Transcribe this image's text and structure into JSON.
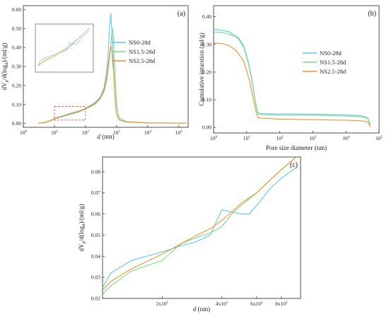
{
  "colors": {
    "ns0": "#5cc8e8",
    "ns15": "#7ed98a",
    "ns25": "#f0902e",
    "highlight": "#e8463a"
  },
  "chart_data": [
    {
      "panel": "(a)",
      "type": "line",
      "xlabel_var": "d",
      "xlabel_unit": " (nm)",
      "ylabel": "dVp/d(logd)/(ml/g)",
      "x_scale": "log",
      "xlim": [
        1,
        200000
      ],
      "ylim": [
        -0.02,
        0.62
      ],
      "x_ticks": [
        {
          "base": "10",
          "exp": "0",
          "v": 1
        },
        {
          "base": "10",
          "exp": "1",
          "v": 10
        },
        {
          "base": "10",
          "exp": "2",
          "v": 100
        },
        {
          "base": "10",
          "exp": "3",
          "v": 1000
        },
        {
          "base": "10",
          "exp": "4",
          "v": 10000
        },
        {
          "base": "10",
          "exp": "5",
          "v": 100000
        }
      ],
      "y_ticks": [
        "0.00",
        "0.10",
        "0.20",
        "0.30",
        "0.40",
        "0.50",
        "0.60"
      ],
      "y_tick_values": [
        0,
        0.1,
        0.2,
        0.3,
        0.4,
        0.5,
        0.6
      ],
      "legend_position": "top-right",
      "series": [
        {
          "name": "NS0-28d",
          "color_key": "ns0",
          "points": [
            [
              3,
              0.002
            ],
            [
              5,
              0.005
            ],
            [
              8,
              0.018
            ],
            [
              10,
              0.028
            ],
            [
              20,
              0.042
            ],
            [
              40,
              0.058
            ],
            [
              60,
              0.065
            ],
            [
              100,
              0.08
            ],
            [
              200,
              0.11
            ],
            [
              300,
              0.14
            ],
            [
              400,
              0.19
            ],
            [
              500,
              0.3
            ],
            [
              550,
              0.4
            ],
            [
              600,
              0.52
            ],
            [
              650,
              0.58
            ],
            [
              700,
              0.5
            ],
            [
              800,
              0.3
            ],
            [
              900,
              0.12
            ],
            [
              1000,
              0.05
            ],
            [
              1200,
              0.02
            ],
            [
              2000,
              0.008
            ],
            [
              10000,
              0.003
            ],
            [
              100000,
              0.002
            ],
            [
              180000,
              0.002
            ]
          ]
        },
        {
          "name": "NS1.5-28d",
          "color_key": "ns15",
          "points": [
            [
              3,
              0.002
            ],
            [
              5,
              0.004
            ],
            [
              8,
              0.015
            ],
            [
              10,
              0.025
            ],
            [
              20,
              0.038
            ],
            [
              40,
              0.052
            ],
            [
              60,
              0.06
            ],
            [
              100,
              0.075
            ],
            [
              200,
              0.1
            ],
            [
              300,
              0.13
            ],
            [
              400,
              0.17
            ],
            [
              500,
              0.24
            ],
            [
              600,
              0.35
            ],
            [
              700,
              0.47
            ],
            [
              750,
              0.5
            ],
            [
              800,
              0.44
            ],
            [
              900,
              0.25
            ],
            [
              1000,
              0.1
            ],
            [
              1200,
              0.03
            ],
            [
              2000,
              0.01
            ],
            [
              10000,
              0.003
            ],
            [
              100000,
              0.002
            ],
            [
              180000,
              0.002
            ]
          ]
        },
        {
          "name": "NS2.5-28d",
          "color_key": "ns25",
          "points": [
            [
              3,
              0.002
            ],
            [
              5,
              0.006
            ],
            [
              8,
              0.018
            ],
            [
              10,
              0.025
            ],
            [
              20,
              0.04
            ],
            [
              40,
              0.055
            ],
            [
              60,
              0.064
            ],
            [
              100,
              0.078
            ],
            [
              200,
              0.105
            ],
            [
              300,
              0.135
            ],
            [
              400,
              0.18
            ],
            [
              500,
              0.26
            ],
            [
              600,
              0.37
            ],
            [
              650,
              0.41
            ],
            [
              700,
              0.38
            ],
            [
              800,
              0.27
            ],
            [
              900,
              0.12
            ],
            [
              1000,
              0.05
            ],
            [
              1200,
              0.02
            ],
            [
              2000,
              0.008
            ],
            [
              10000,
              0.003
            ],
            [
              100000,
              0.002
            ],
            [
              180000,
              0.002
            ]
          ]
        }
      ]
    },
    {
      "panel": "(b)",
      "type": "line",
      "xlabel": "Pore size diameter (nm)",
      "ylabel": "Cumulative inturstion (ml/g)",
      "x_scale": "log",
      "xlim": [
        1,
        100000
      ],
      "ylim": [
        -0.02,
        0.44
      ],
      "x_ticks": [
        {
          "base": "10",
          "exp": "0",
          "v": 1
        },
        {
          "base": "10",
          "exp": "1",
          "v": 10
        },
        {
          "base": "10",
          "exp": "2",
          "v": 100
        },
        {
          "base": "10",
          "exp": "3",
          "v": 1000
        },
        {
          "base": "10",
          "exp": "4",
          "v": 10000
        },
        {
          "base": "10",
          "exp": "5",
          "v": 100000
        }
      ],
      "y_ticks": [
        "0.00",
        "0.10",
        "0.20",
        "0.30",
        "0.40"
      ],
      "y_tick_values": [
        0,
        0.1,
        0.2,
        0.3,
        0.4
      ],
      "legend_position": "middle-right",
      "series": [
        {
          "name": "NS0-28d",
          "color_key": "ns0",
          "points": [
            [
              1,
              0.355
            ],
            [
              2,
              0.35
            ],
            [
              3,
              0.345
            ],
            [
              4,
              0.335
            ],
            [
              5,
              0.33
            ],
            [
              6,
              0.32
            ],
            [
              8,
              0.295
            ],
            [
              10,
              0.26
            ],
            [
              12,
              0.22
            ],
            [
              14,
              0.18
            ],
            [
              16,
              0.14
            ],
            [
              18,
              0.1
            ],
            [
              20,
              0.07
            ],
            [
              22,
              0.052
            ],
            [
              30,
              0.05
            ],
            [
              100,
              0.049
            ],
            [
              1000,
              0.048
            ],
            [
              10000,
              0.045
            ],
            [
              30000,
              0.042
            ],
            [
              45000,
              0.035
            ],
            [
              55000,
              0.01
            ]
          ]
        },
        {
          "name": "NS1.5-28d",
          "color_key": "ns15",
          "points": [
            [
              1,
              0.345
            ],
            [
              2,
              0.342
            ],
            [
              3,
              0.336
            ],
            [
              4,
              0.33
            ],
            [
              5,
              0.325
            ],
            [
              6,
              0.315
            ],
            [
              8,
              0.29
            ],
            [
              10,
              0.255
            ],
            [
              12,
              0.215
            ],
            [
              14,
              0.175
            ],
            [
              16,
              0.135
            ],
            [
              18,
              0.095
            ],
            [
              20,
              0.065
            ],
            [
              22,
              0.048
            ],
            [
              30,
              0.046
            ],
            [
              100,
              0.045
            ],
            [
              1000,
              0.044
            ],
            [
              10000,
              0.041
            ],
            [
              30000,
              0.038
            ],
            [
              45000,
              0.032
            ],
            [
              55000,
              0.008
            ]
          ]
        },
        {
          "name": "NS2.5-28d",
          "color_key": "ns25",
          "points": [
            [
              1,
              0.305
            ],
            [
              2,
              0.302
            ],
            [
              3,
              0.295
            ],
            [
              4,
              0.285
            ],
            [
              5,
              0.275
            ],
            [
              6,
              0.262
            ],
            [
              8,
              0.24
            ],
            [
              10,
              0.205
            ],
            [
              12,
              0.17
            ],
            [
              14,
              0.135
            ],
            [
              16,
              0.1
            ],
            [
              18,
              0.07
            ],
            [
              20,
              0.048
            ],
            [
              22,
              0.035
            ],
            [
              30,
              0.033
            ],
            [
              100,
              0.03
            ],
            [
              1000,
              0.028
            ],
            [
              10000,
              0.026
            ],
            [
              30000,
              0.024
            ],
            [
              45000,
              0.02
            ],
            [
              55000,
              0.002
            ]
          ]
        }
      ]
    },
    {
      "panel": "(c)",
      "type": "line",
      "xlabel_var": "d",
      "xlabel_unit": " (nm)",
      "ylabel": "dVp/d(logd)/(ml/g)",
      "x_scale": "log",
      "xlim": [
        10,
        100
      ],
      "ylim": [
        0.02,
        0.087
      ],
      "x_ticks": [
        {
          "base": "2x10",
          "exp": "1",
          "v": 20
        },
        {
          "base": "4x10",
          "exp": "1",
          "v": 40
        },
        {
          "base": "6x10",
          "exp": "1",
          "v": 60
        },
        {
          "base": "8x10",
          "exp": "1",
          "v": 80
        }
      ],
      "y_ticks": [
        "0.02",
        "0.03",
        "0.04",
        "0.05",
        "0.06",
        "0.07",
        "0.08"
      ],
      "y_tick_values": [
        0.02,
        0.03,
        0.04,
        0.05,
        0.06,
        0.07,
        0.08
      ],
      "series": [
        {
          "name": "NS0-28d",
          "color_key": "ns0",
          "points": [
            [
              10,
              0.025
            ],
            [
              11,
              0.032
            ],
            [
              14,
              0.038
            ],
            [
              20,
              0.042
            ],
            [
              25,
              0.045
            ],
            [
              30,
              0.047
            ],
            [
              35,
              0.05
            ],
            [
              40,
              0.062
            ],
            [
              50,
              0.06
            ],
            [
              55,
              0.06
            ],
            [
              60,
              0.064
            ],
            [
              70,
              0.072
            ],
            [
              80,
              0.077
            ],
            [
              95,
              0.082
            ]
          ]
        },
        {
          "name": "NS1.5-28d",
          "color_key": "ns15",
          "points": [
            [
              10,
              0.022
            ],
            [
              11,
              0.026
            ],
            [
              14,
              0.033
            ],
            [
              20,
              0.038
            ],
            [
              25,
              0.046
            ],
            [
              30,
              0.049
            ],
            [
              35,
              0.051
            ],
            [
              40,
              0.054
            ],
            [
              45,
              0.06
            ],
            [
              50,
              0.064
            ],
            [
              60,
              0.07
            ],
            [
              70,
              0.076
            ],
            [
              80,
              0.081
            ],
            [
              95,
              0.087
            ]
          ]
        },
        {
          "name": "NS2.5-28d",
          "color_key": "ns25",
          "points": [
            [
              10,
              0.024
            ],
            [
              11,
              0.028
            ],
            [
              14,
              0.034
            ],
            [
              20,
              0.041
            ],
            [
              25,
              0.046
            ],
            [
              30,
              0.05
            ],
            [
              35,
              0.053
            ],
            [
              40,
              0.057
            ],
            [
              45,
              0.061
            ],
            [
              50,
              0.065
            ],
            [
              60,
              0.07
            ],
            [
              70,
              0.076
            ],
            [
              80,
              0.081
            ],
            [
              95,
              0.087
            ]
          ]
        }
      ]
    }
  ]
}
